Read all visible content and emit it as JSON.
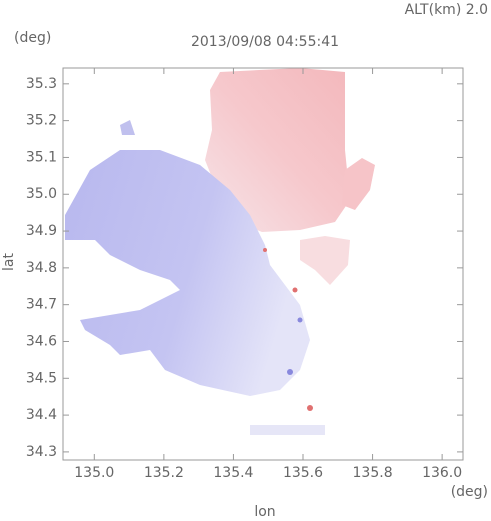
{
  "chart_data": {
    "type": "radar-velocity",
    "title": "2013/09/08 04:55:41",
    "annotation": "ALT(km) 2.0",
    "x_label": "lon",
    "y_label": "lat",
    "x_unit": "(deg)",
    "y_unit": "(deg)",
    "xlim": [
      134.91,
      136.06
    ],
    "ylim": [
      34.278,
      35.343
    ],
    "xticks": [
      {
        "value": 135.0,
        "label": "135.0"
      },
      135.2,
      135.4,
      135.6,
      135.8,
      {
        "value": 136.0,
        "label": "136.0"
      }
    ],
    "yticks": [
      34.3,
      34.4,
      34.5,
      34.6,
      34.7,
      34.8,
      34.9,
      {
        "value": 35.0,
        "label": "35.0"
      },
      35.1,
      35.2,
      35.3
    ]
  }
}
